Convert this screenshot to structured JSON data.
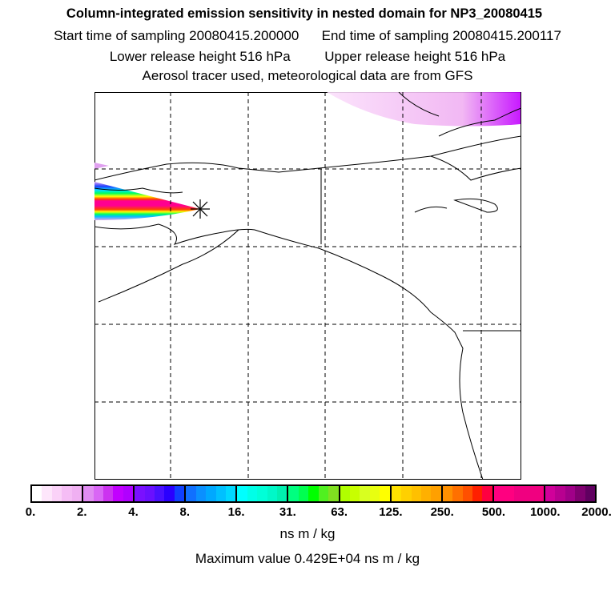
{
  "title": "Column-integrated emission sensitivity in nested domain for NP3_20080415",
  "start_time": "Start time of sampling 20080415.200000",
  "end_time": "End time of sampling 20080415.200117",
  "lower_release": "Lower release height  516 hPa",
  "upper_release": "Upper release height  516 hPa",
  "tracer_note": "Aerosol tracer used, meteorological data are from GFS",
  "colorbar": {
    "ticks": [
      "0.",
      "2.",
      "4.",
      "8.",
      "16.",
      "31.",
      "63.",
      "125.",
      "250.",
      "500.",
      "1000.",
      "2000."
    ],
    "segments": [
      [
        "#ffffff",
        "#fde6fb",
        "#fad2f8",
        "#f5bdf5",
        "#f0b0f2"
      ],
      [
        "#e18cf2",
        "#d966f5",
        "#cc33f0",
        "#c200ff",
        "#b000ff"
      ],
      [
        "#7a10ff",
        "#6a10ff",
        "#4a10ff",
        "#2a00ff",
        "#1040ff"
      ],
      [
        "#1070ff",
        "#0a90ff",
        "#00a8ff",
        "#00c0ff",
        "#00d8ff"
      ],
      [
        "#00ffff",
        "#00ffe8",
        "#00ffd8",
        "#00f8c8",
        "#00f0b0"
      ],
      [
        "#00ff80",
        "#00ff50",
        "#00ff00",
        "#50f020",
        "#80e020"
      ],
      [
        "#b0ff00",
        "#c8ff00",
        "#d8ff20",
        "#e8ff10",
        "#ffff00"
      ],
      [
        "#ffe000",
        "#ffd000",
        "#ffc000",
        "#ffb000",
        "#ffa000"
      ],
      [
        "#ff9000",
        "#ff7000",
        "#ff5000",
        "#ff2000",
        "#ff0040"
      ],
      [
        "#ff0080",
        "#ff0080",
        "#f00080",
        "#f00080",
        "#f00080"
      ],
      [
        "#d0009a",
        "#b80090",
        "#a00088",
        "#800070",
        "#600060"
      ]
    ],
    "units": "ns m / kg",
    "maximum": "Maximum value  0.429E+04 ns m / kg"
  },
  "release_marker": "release-point"
}
